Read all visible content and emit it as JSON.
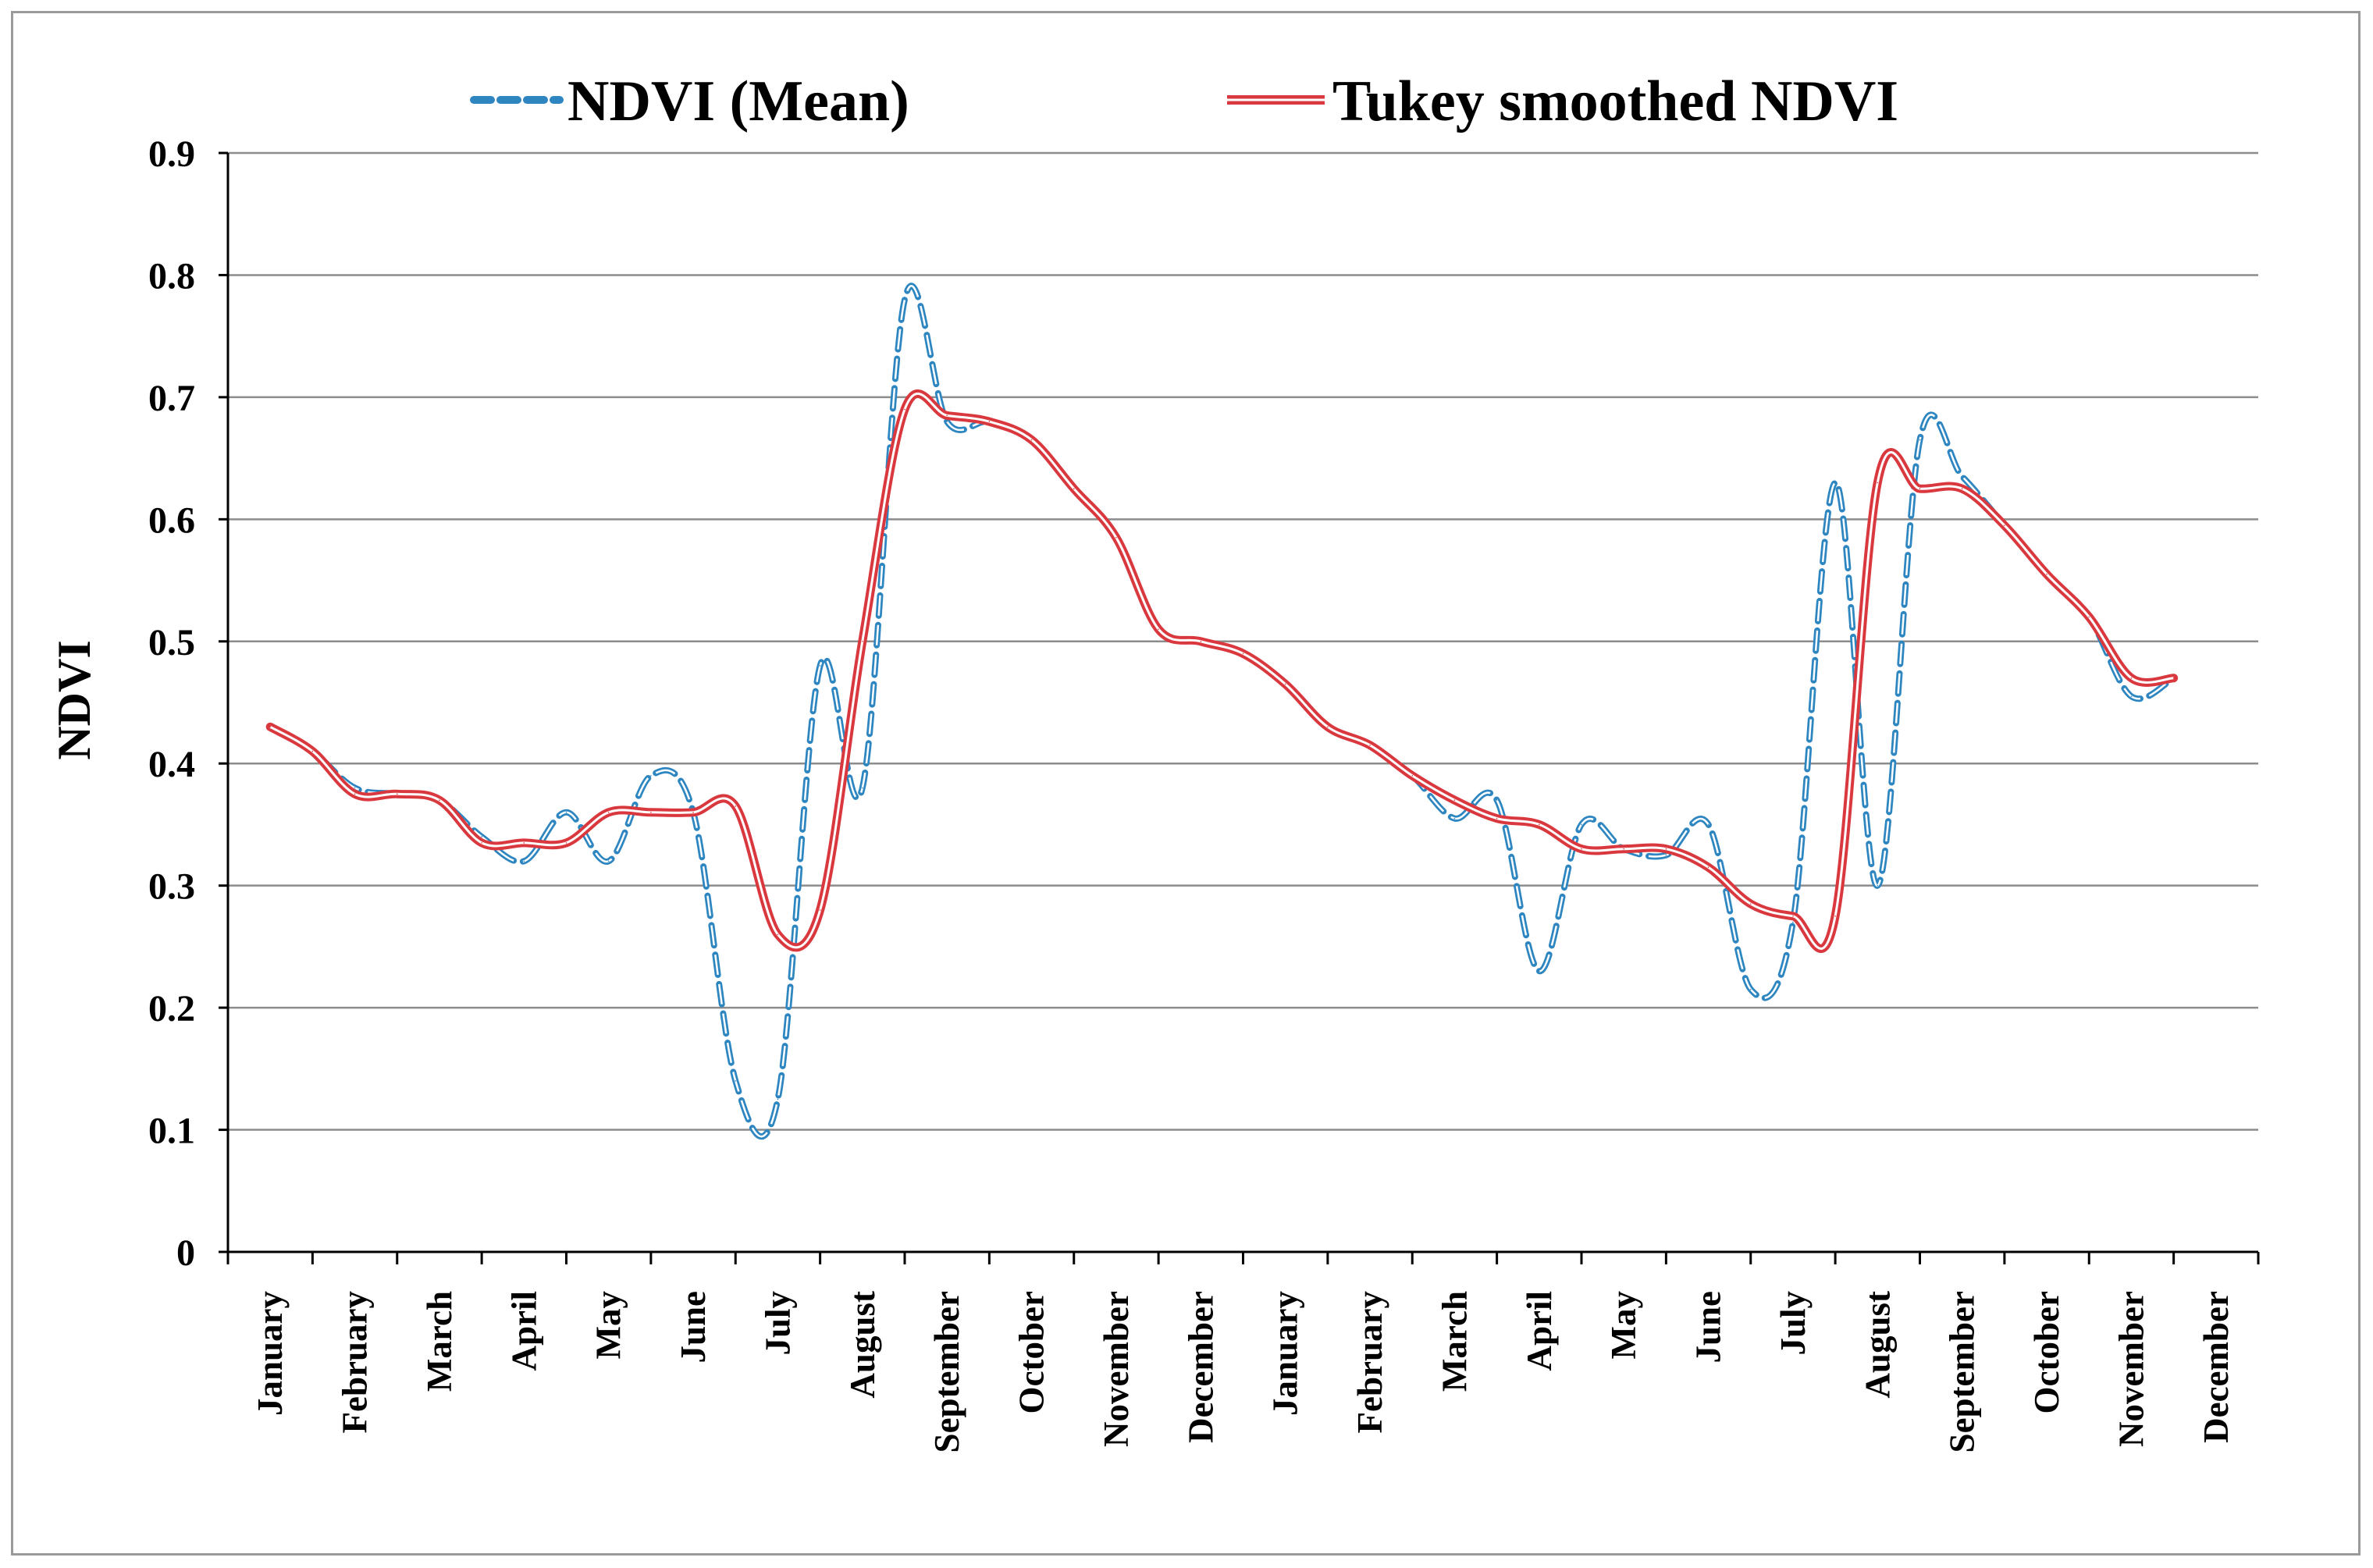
{
  "chart_data": {
    "type": "line",
    "title": "",
    "xlabel": "",
    "ylabel": "NDVI",
    "ylim": [
      0,
      0.9
    ],
    "yticks": [
      "0",
      "0.1",
      "0.2",
      "0.3",
      "0.4",
      "0.5",
      "0.6",
      "0.7",
      "0.8",
      "0.9"
    ],
    "grid": true,
    "legend_position": "top",
    "categories": [
      "January",
      "February",
      "March",
      "April",
      "May",
      "June",
      "July",
      "August",
      "September",
      "October",
      "November",
      "December",
      "January",
      "February",
      "March",
      "April",
      "May",
      "June",
      "July",
      "August",
      "September",
      "October",
      "November",
      "December"
    ],
    "series": [
      {
        "name": "NDVI (Mean)",
        "color": "#2e86c1",
        "style": "dashed",
        "x": [
          0.0,
          0.5,
          1.0,
          1.5,
          2.0,
          2.5,
          3.0,
          3.5,
          4.0,
          4.5,
          5.0,
          5.5,
          6.0,
          6.5,
          7.0,
          7.5,
          8.0,
          8.5,
          9.0,
          9.5,
          10.0,
          10.5,
          11.0,
          11.5,
          12.0,
          12.5,
          13.0,
          13.5,
          14.0,
          14.5,
          15.0,
          15.5,
          16.0,
          16.5,
          17.0,
          17.5,
          18.0,
          18.5,
          19.0,
          19.5,
          20.0,
          20.5,
          21.0,
          21.5,
          22.0,
          22.5
        ],
        "values": [
          0.43,
          0.41,
          0.38,
          0.375,
          0.37,
          0.34,
          0.32,
          0.36,
          0.32,
          0.39,
          0.36,
          0.14,
          0.125,
          0.48,
          0.38,
          0.78,
          0.68,
          0.68,
          0.665,
          0.625,
          0.585,
          0.51,
          0.5,
          0.49,
          0.465,
          0.43,
          0.415,
          0.39,
          0.355,
          0.37,
          0.23,
          0.35,
          0.33,
          0.325,
          0.35,
          0.215,
          0.27,
          0.63,
          0.3,
          0.665,
          0.635,
          0.595,
          0.555,
          0.52,
          0.455,
          0.47
        ]
      },
      {
        "name": "Tukey smoothed NDVI",
        "color": "#d9393e",
        "style": "solid",
        "x": [
          0.0,
          0.5,
          1.0,
          1.5,
          2.0,
          2.5,
          3.0,
          3.5,
          4.0,
          4.5,
          5.0,
          5.5,
          6.0,
          6.5,
          7.0,
          7.5,
          8.0,
          8.5,
          9.0,
          9.5,
          10.0,
          10.5,
          11.0,
          11.5,
          12.0,
          12.5,
          13.0,
          13.5,
          14.0,
          14.5,
          15.0,
          15.5,
          16.0,
          16.5,
          17.0,
          17.5,
          18.0,
          18.5,
          19.0,
          19.5,
          20.0,
          20.5,
          21.0,
          21.5,
          22.0,
          22.5
        ],
        "values": [
          0.43,
          0.41,
          0.375,
          0.375,
          0.37,
          0.335,
          0.335,
          0.335,
          0.36,
          0.36,
          0.36,
          0.365,
          0.26,
          0.28,
          0.5,
          0.69,
          0.685,
          0.68,
          0.665,
          0.625,
          0.585,
          0.51,
          0.5,
          0.49,
          0.465,
          0.43,
          0.415,
          0.39,
          0.37,
          0.355,
          0.35,
          0.33,
          0.33,
          0.33,
          0.315,
          0.285,
          0.275,
          0.275,
          0.63,
          0.625,
          0.625,
          0.595,
          0.555,
          0.52,
          0.47,
          0.47
        ]
      }
    ]
  }
}
